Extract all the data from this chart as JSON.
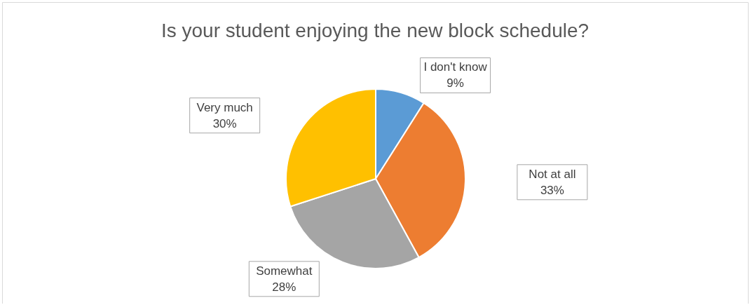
{
  "chart_data": {
    "type": "pie",
    "title": "Is your student enjoying the new block schedule?",
    "categories": [
      "I don't know",
      "Not at all",
      "Somewhat",
      "Very much"
    ],
    "values": [
      9,
      33,
      28,
      30
    ],
    "colors": [
      "#5b9bd5",
      "#ed7d31",
      "#a5a5a5",
      "#ffc000"
    ],
    "value_labels": [
      "9%",
      "33%",
      "28%",
      "30%"
    ]
  }
}
